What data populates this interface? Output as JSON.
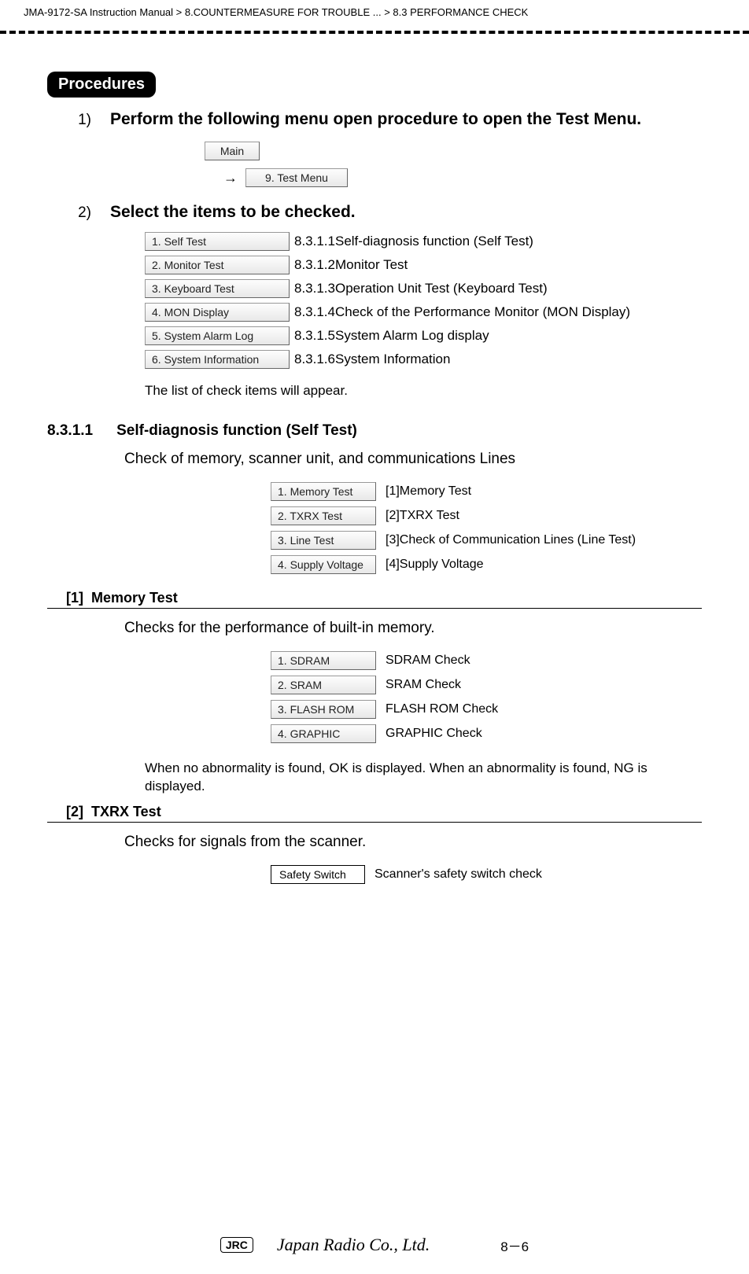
{
  "breadcrumb": {
    "manual": "JMA-9172-SA Instruction Manual",
    "sep": ">",
    "chapter": "8.COUNTERMEASURE FOR TROUBLE ...",
    "section": "8.3  PERFORMANCE CHECK"
  },
  "procedures_label": "Procedures",
  "step1": {
    "num": "1)",
    "text": "Perform the following menu open procedure to open the Test Menu."
  },
  "main_button": "Main",
  "arrow": "→",
  "test_menu_button": "9. Test Menu",
  "step2": {
    "num": "2)",
    "text": "Select the items to be checked."
  },
  "check_items": [
    {
      "button": "1. Self Test",
      "ref": "8.3.1.1Self-diagnosis function (Self Test)"
    },
    {
      "button": "2. Monitor Test",
      "ref": "8.3.1.2Monitor Test"
    },
    {
      "button": "3. Keyboard Test",
      "ref": "8.3.1.3Operation Unit Test (Keyboard Test)"
    },
    {
      "button": "4. MON Display",
      "ref": "8.3.1.4Check of the Performance Monitor (MON Display)"
    },
    {
      "button": "5. System Alarm Log",
      "ref": "8.3.1.5System Alarm Log display"
    },
    {
      "button": "6. System Information",
      "ref": "8.3.1.6System Information"
    }
  ],
  "note_list": "The list of check items will appear.",
  "sect_8311": {
    "num": "8.3.1.1",
    "title": "Self-diagnosis function (Self Test)",
    "desc": "Check of memory, scanner unit, and communications Lines"
  },
  "self_test_items": [
    {
      "button": "1. Memory Test",
      "ref": "[1]Memory Test"
    },
    {
      "button": "2. TXRX Test",
      "ref": "[2]TXRX Test"
    },
    {
      "button": "3. Line Test",
      "ref": "[3]Check of Communication Lines (Line Test)"
    },
    {
      "button": "4. Supply Voltage",
      "ref": "[4]Supply Voltage"
    }
  ],
  "subsect1": {
    "num": "[1]",
    "title": "Memory Test",
    "desc": "Checks for the performance of built-in memory."
  },
  "memory_items": [
    {
      "button": "1. SDRAM",
      "ref": "SDRAM Check"
    },
    {
      "button": "2. SRAM",
      "ref": "SRAM Check"
    },
    {
      "button": "3. FLASH ROM",
      "ref": "FLASH ROM Check"
    },
    {
      "button": "4. GRAPHIC",
      "ref": "GRAPHIC Check"
    }
  ],
  "memory_note": "When no abnormality is found, OK is displayed. When an abnormality is found, NG is displayed.",
  "subsect2": {
    "num": "[2]",
    "title": "TXRX Test",
    "desc": "Checks for signals from the scanner."
  },
  "txrx_items": [
    {
      "button": "Safety Switch",
      "ref": "Scanner's safety switch check"
    }
  ],
  "footer": {
    "jrc": "JRC",
    "company": "Japan Radio Co., Ltd.",
    "page": "8－6"
  },
  "colors": {
    "text": "#000000",
    "bg": "#ffffff",
    "button_grad_top": "#fdfdfd",
    "button_grad_bot": "#e8e8e8",
    "button_border": "#999999"
  }
}
